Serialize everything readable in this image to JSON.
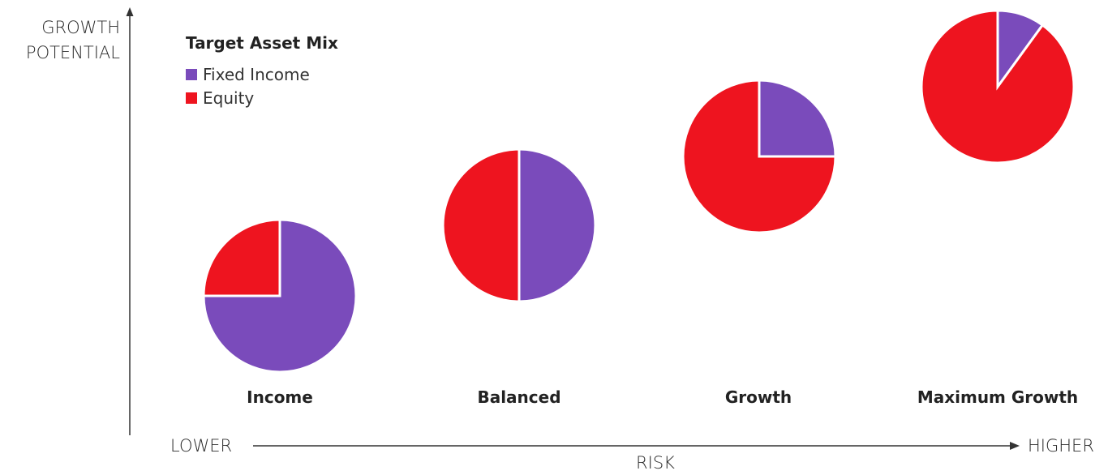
{
  "chart_data": {
    "type": "pie",
    "title": "",
    "legend": {
      "title": "Target Asset Mix",
      "placement": "top-left",
      "entries": [
        {
          "name": "Fixed Income",
          "color": "#7a4bbb"
        },
        {
          "name": "Equity",
          "color": "#ee141f"
        }
      ]
    },
    "y_axis": {
      "label_line1": "GROWTH",
      "label_line2": "POTENTIAL"
    },
    "x_axis": {
      "label": "RISK",
      "low_label": "LOWER",
      "high_label": "HIGHER"
    },
    "categories": [
      "Income",
      "Balanced",
      "Growth",
      "Maximum Growth"
    ],
    "portfolios": [
      {
        "name": "Income",
        "slices": [
          {
            "name": "Fixed Income",
            "value": 75
          },
          {
            "name": "Equity",
            "value": 25
          }
        ]
      },
      {
        "name": "Balanced",
        "slices": [
          {
            "name": "Fixed Income",
            "value": 50
          },
          {
            "name": "Equity",
            "value": 50
          }
        ]
      },
      {
        "name": "Growth",
        "slices": [
          {
            "name": "Fixed Income",
            "value": 25
          },
          {
            "name": "Equity",
            "value": 75
          }
        ]
      },
      {
        "name": "Maximum Growth",
        "slices": [
          {
            "name": "Fixed Income",
            "value": 10
          },
          {
            "name": "Equity",
            "value": 90
          }
        ]
      }
    ],
    "colors": {
      "Fixed Income": "#7a4bbb",
      "Equity": "#ee141f"
    }
  }
}
